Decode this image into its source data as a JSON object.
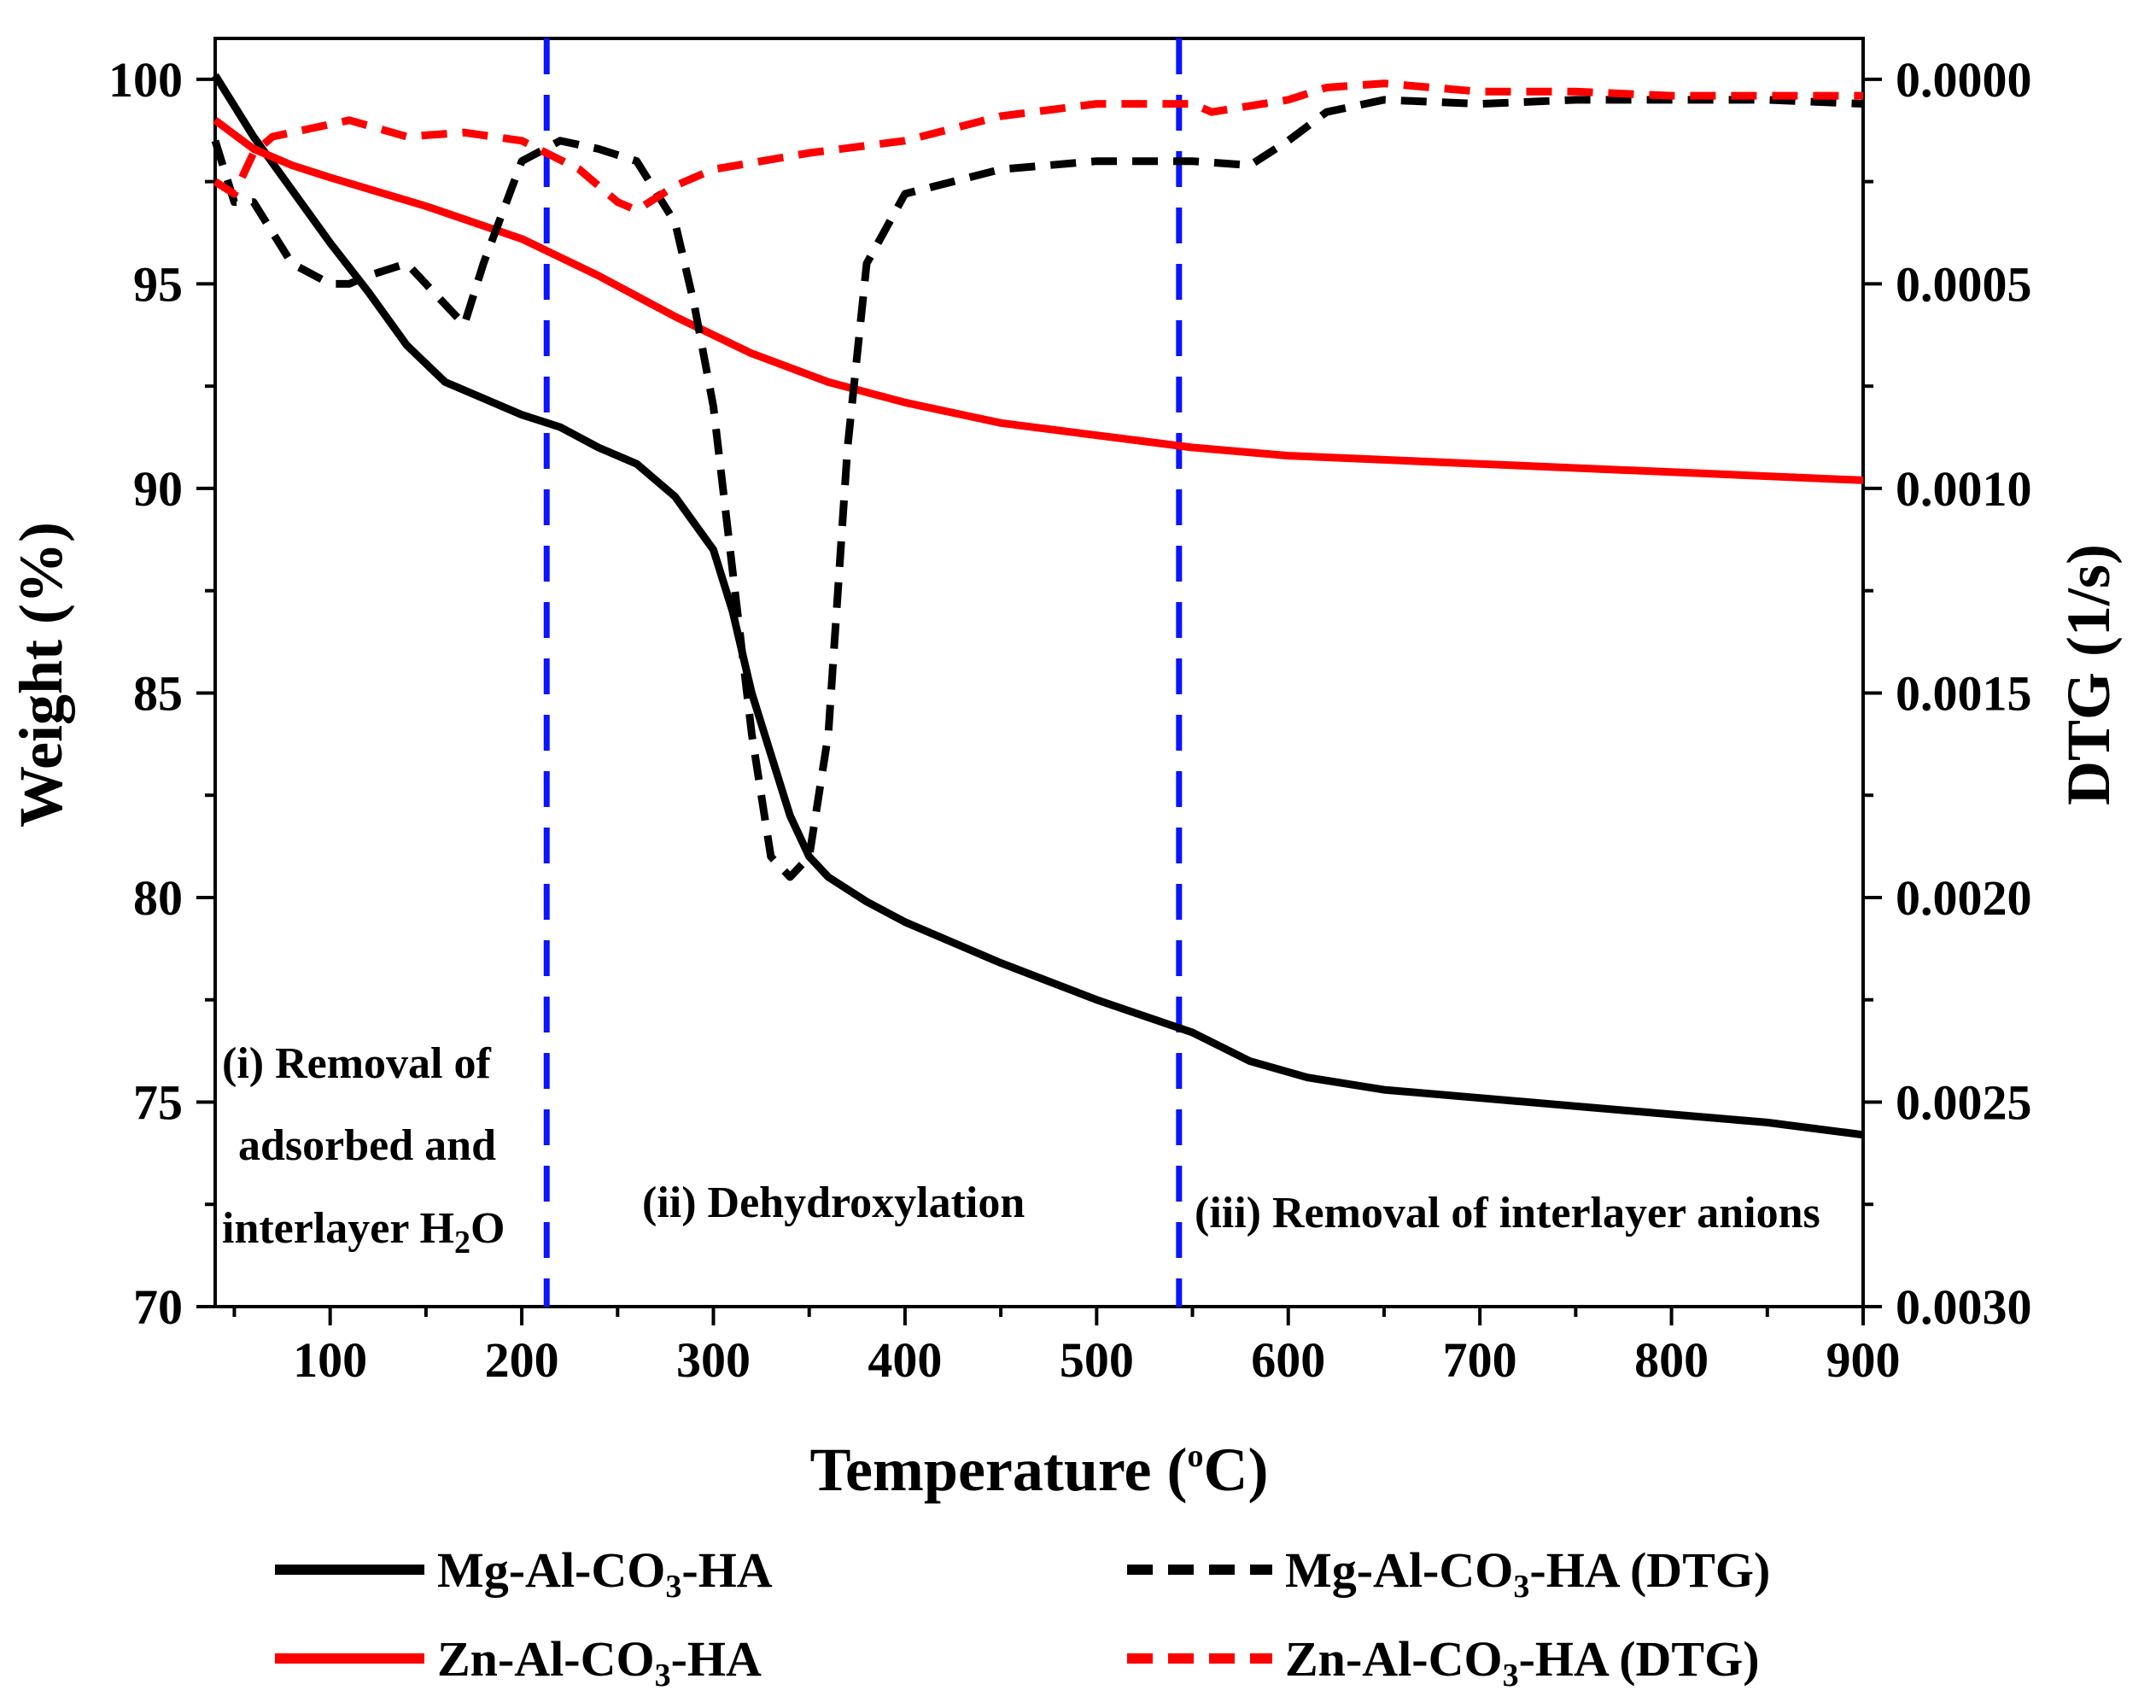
{
  "chart_data": {
    "type": "line",
    "xlabel_main": "Temperature (",
    "xlabel_sup": "o",
    "xlabel_end": "C)",
    "ylabel": "Weight (%)",
    "y2label": "DTG (1/s)",
    "xlim": [
      40,
      900
    ],
    "ylim": [
      70,
      101
    ],
    "y2lim": [
      0.003,
      -0.0001
    ],
    "x_ticks": [
      100,
      200,
      300,
      400,
      500,
      600,
      700,
      800,
      900
    ],
    "y_ticks": [
      70,
      75,
      80,
      85,
      90,
      95,
      100
    ],
    "y2_ticks": [
      "0.0000",
      "0.0005",
      "0.0010",
      "0.0015",
      "0.0020",
      "0.0025",
      "0.0030"
    ],
    "vlines": [
      213,
      543
    ],
    "annotations": {
      "region1_line1": "(i) Removal of",
      "region1_line2": "adsorbed and",
      "region1_line3_pre": "interlayer H",
      "region1_line3_sub": "2",
      "region1_line3_post": "O",
      "region2": "(ii) Dehydroxylation",
      "region3": "(iii) Removal of interlayer anions"
    },
    "series": [
      {
        "name_pre": "Mg-Al-CO",
        "name_sub": "3",
        "name_post": "-HA",
        "axis": "left",
        "color": "#000000",
        "dash": "solid",
        "x": [
          40,
          60,
          80,
          100,
          120,
          140,
          160,
          180,
          190,
          200,
          220,
          240,
          260,
          280,
          300,
          310,
          320,
          330,
          340,
          350,
          360,
          380,
          400,
          450,
          500,
          550,
          580,
          610,
          650,
          700,
          750,
          800,
          850,
          900
        ],
        "y": [
          100.1,
          98.6,
          97.3,
          96.0,
          94.8,
          93.5,
          92.6,
          92.2,
          92.0,
          91.8,
          91.5,
          91.0,
          90.6,
          89.8,
          88.5,
          87.0,
          85.0,
          83.5,
          82.0,
          81.0,
          80.5,
          79.9,
          79.4,
          78.4,
          77.5,
          76.7,
          76.0,
          75.6,
          75.3,
          75.1,
          74.9,
          74.7,
          74.5,
          74.2
        ]
      },
      {
        "name_pre": "Zn-Al-CO",
        "name_sub": "3",
        "name_post": "-HA",
        "axis": "left",
        "color": "#ff0000",
        "dash": "solid",
        "x": [
          40,
          60,
          80,
          100,
          150,
          200,
          240,
          280,
          320,
          360,
          400,
          450,
          500,
          550,
          600,
          650,
          700,
          800,
          900
        ],
        "y": [
          99.0,
          98.3,
          97.9,
          97.6,
          96.9,
          96.1,
          95.2,
          94.2,
          93.3,
          92.6,
          92.1,
          91.6,
          91.3,
          91.0,
          90.8,
          90.7,
          90.6,
          90.4,
          90.2
        ]
      },
      {
        "name_pre": "Mg-Al-CO",
        "name_sub": "3",
        "name_post": "-HA (DTG)",
        "axis": "right",
        "color": "#000000",
        "dash": "dashed",
        "x": [
          40,
          50,
          60,
          80,
          100,
          110,
          120,
          140,
          160,
          170,
          180,
          200,
          220,
          240,
          260,
          280,
          290,
          300,
          310,
          320,
          330,
          340,
          350,
          360,
          370,
          380,
          400,
          450,
          500,
          550,
          580,
          600,
          620,
          650,
          700,
          750,
          800,
          850,
          900
        ],
        "y": [
          0.00015,
          0.0003,
          0.0003,
          0.00045,
          0.0005,
          0.0005,
          0.00048,
          0.00045,
          0.00055,
          0.0006,
          0.00045,
          0.0002,
          0.00015,
          0.00017,
          0.0002,
          0.00035,
          0.00055,
          0.0008,
          0.0012,
          0.0016,
          0.0019,
          0.00195,
          0.0019,
          0.0016,
          0.0009,
          0.00045,
          0.00028,
          0.00022,
          0.0002,
          0.0002,
          0.00021,
          0.00015,
          8e-05,
          5e-05,
          6e-05,
          5e-05,
          5e-05,
          5e-05,
          6e-05
        ]
      },
      {
        "name_pre": "Zn-Al-CO",
        "name_sub": "3",
        "name_post": "-HA (DTG)",
        "axis": "right",
        "color": "#ff0000",
        "dash": "dashed",
        "x": [
          40,
          50,
          60,
          70,
          90,
          110,
          140,
          170,
          200,
          230,
          250,
          260,
          280,
          300,
          350,
          400,
          450,
          500,
          550,
          560,
          600,
          620,
          650,
          700,
          750,
          800,
          850,
          900
        ],
        "y": [
          0.00025,
          0.00028,
          0.00018,
          0.00014,
          0.00012,
          0.0001,
          0.00014,
          0.00013,
          0.00015,
          0.00022,
          0.0003,
          0.00032,
          0.00026,
          0.00022,
          0.00018,
          0.00015,
          9e-05,
          6e-05,
          6e-05,
          8e-05,
          5e-05,
          2e-05,
          1e-05,
          3e-05,
          3e-05,
          4e-05,
          4e-05,
          4e-05
        ]
      }
    ]
  }
}
